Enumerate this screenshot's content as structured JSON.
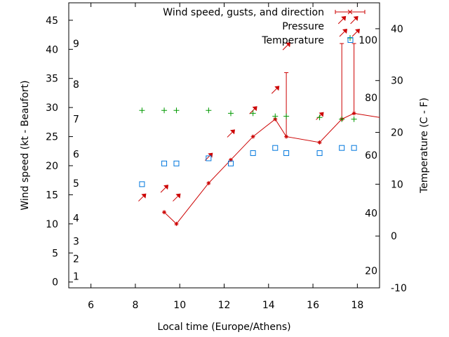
{
  "chart_data": {
    "type": "line",
    "xlabel": "Local time (Europe/Athens)",
    "ylabel_left": "Wind speed (kt - Beaufort)",
    "ylabel_right": "Temperature (C - F)",
    "xlim": [
      5,
      19
    ],
    "ylim_left": [
      -1,
      48
    ],
    "ylim_right": [
      -10,
      45
    ],
    "x_ticks": [
      6,
      8,
      10,
      12,
      14,
      16,
      18
    ],
    "y_left_ticks": [
      0,
      5,
      10,
      15,
      20,
      25,
      30,
      35,
      40,
      45
    ],
    "y_right_ticks": [
      -10,
      0,
      10,
      20,
      30,
      40
    ],
    "beaufort_labels": [
      {
        "label": "1",
        "y": 1
      },
      {
        "label": "2",
        "y": 4
      },
      {
        "label": "3",
        "y": 7
      },
      {
        "label": "4",
        "y": 11
      },
      {
        "label": "5",
        "y": 17
      },
      {
        "label": "6",
        "y": 22
      },
      {
        "label": "7",
        "y": 28
      },
      {
        "label": "8",
        "y": 34
      },
      {
        "label": "9",
        "y": 41
      }
    ],
    "fahrenheit_labels": [
      {
        "label": "20",
        "y": -6.7
      },
      {
        "label": "40",
        "y": 4.4
      },
      {
        "label": "60",
        "y": 15.6
      },
      {
        "label": "80",
        "y": 26.7
      },
      {
        "label": "100",
        "y": 37.8
      }
    ],
    "legend": [
      {
        "label": "Wind speed, gusts, and direction",
        "color": "#cc0000",
        "symbol": "errorbar"
      },
      {
        "label": "",
        "color": "#cc0000",
        "symbol": "arrows"
      },
      {
        "label": "Pressure",
        "color": "#009900",
        "symbol": "plus"
      },
      {
        "label": "Temperature",
        "color": "#0077dd",
        "symbol": "square"
      }
    ],
    "series": [
      {
        "key": "wind",
        "color": "#cc0000",
        "x": [
          9.3,
          9.85,
          11.3,
          12.3,
          13.3,
          14.3,
          14.8,
          16.3,
          17.3,
          17.85,
          19.5
        ],
        "y": [
          12,
          10,
          17,
          21,
          25,
          28,
          25,
          24,
          28,
          29,
          28
        ]
      },
      {
        "key": "gusts",
        "color": "#cc0000",
        "bars": [
          {
            "x": 14.8,
            "low": 25,
            "high": 36
          },
          {
            "x": 17.3,
            "low": 28,
            "high": 41
          },
          {
            "x": 17.85,
            "low": 29,
            "high": 41
          }
        ]
      },
      {
        "key": "direction_arrows",
        "color": "#cc0000",
        "points": [
          {
            "x": 8.3,
            "y": 14.5
          },
          {
            "x": 9.3,
            "y": 16
          },
          {
            "x": 9.85,
            "y": 14.5
          },
          {
            "x": 11.3,
            "y": 21.5
          },
          {
            "x": 12.3,
            "y": 25.5
          },
          {
            "x": 13.3,
            "y": 29.5
          },
          {
            "x": 14.3,
            "y": 33
          },
          {
            "x": 14.8,
            "y": 40.5
          },
          {
            "x": 16.3,
            "y": 28.5
          },
          {
            "x": 17.3,
            "y": 45
          },
          {
            "x": 17.85,
            "y": 45
          }
        ]
      },
      {
        "key": "pressure",
        "color": "#009900",
        "x": [
          8.3,
          9.3,
          9.85,
          11.3,
          12.3,
          13.3,
          14.3,
          14.8,
          16.3,
          17.3,
          17.85
        ],
        "y": [
          29.5,
          29.5,
          29.5,
          29.5,
          29,
          29,
          28.5,
          28.5,
          28.3,
          28,
          28
        ]
      },
      {
        "key": "temperature",
        "color": "#0077dd",
        "x": [
          8.3,
          9.3,
          9.85,
          11.3,
          12.3,
          13.3,
          14.3,
          14.8,
          16.3,
          17.3,
          17.85
        ],
        "y": [
          10,
          14,
          14,
          15,
          14,
          16,
          17,
          16,
          16,
          17,
          17
        ]
      }
    ],
    "grid": false
  }
}
